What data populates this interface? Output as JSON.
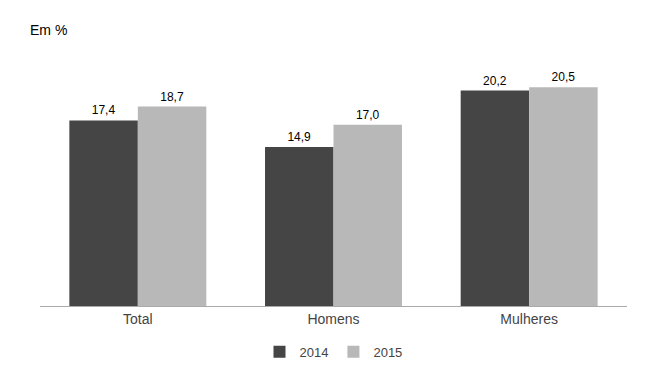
{
  "chart_data": {
    "type": "bar",
    "ylabel": "Em %",
    "categories": [
      "Total",
      "Homens",
      "Mulheres"
    ],
    "series": [
      {
        "name": "2014",
        "color": "#454545",
        "values": [
          17.4,
          14.9,
          20.2
        ],
        "value_labels": [
          "17,4",
          "14,9",
          "20,2"
        ]
      },
      {
        "name": "2015",
        "color": "#b8b8b8",
        "values": [
          18.7,
          17.0,
          20.5
        ],
        "value_labels": [
          "18,7",
          "17,0",
          "20,5"
        ]
      }
    ],
    "ylim": [
      0,
      24
    ],
    "grid": false,
    "legend": "bottom",
    "data_labels": true,
    "tick_labels": "x"
  }
}
